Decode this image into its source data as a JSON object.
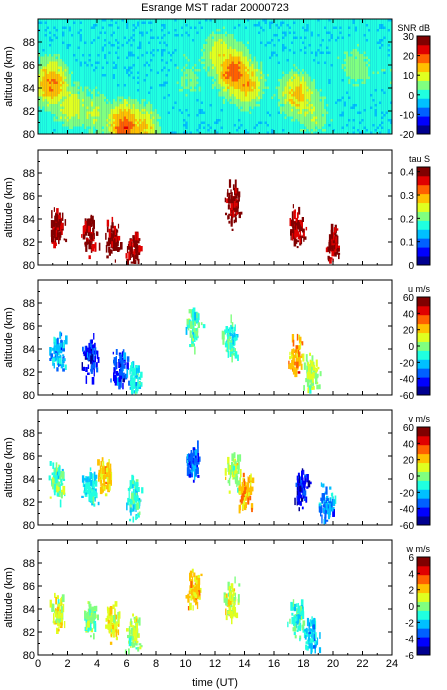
{
  "title": "Esrange MST radar 20000723",
  "colormap": [
    "#00008f",
    "#0000ff",
    "#0060ff",
    "#00c0ff",
    "#20ffe0",
    "#80ff80",
    "#e0ff20",
    "#ffc000",
    "#ff6000",
    "#e00000",
    "#800000"
  ],
  "chart_data": [
    {
      "type": "heatmap",
      "name": "snr",
      "ylabel": "altitude (km)",
      "xlim": [
        0,
        24
      ],
      "ylim": [
        80,
        90
      ],
      "yticks": [
        "80",
        "82",
        "84",
        "86",
        "88"
      ],
      "colorbar": {
        "label": "SNR dB",
        "range": [
          -20,
          30
        ],
        "ticks": [
          "-20",
          "-10",
          "0",
          "10",
          "20",
          "30"
        ]
      },
      "background": "#0030c0",
      "features": [
        {
          "t": 0.8,
          "z": 84.5,
          "value": 22
        },
        {
          "t": 2.2,
          "z": 82.5,
          "value": 15
        },
        {
          "t": 3.8,
          "z": 82.0,
          "value": 12
        },
        {
          "t": 5.8,
          "z": 80.8,
          "value": 25
        },
        {
          "t": 7.0,
          "z": 80.6,
          "value": 18
        },
        {
          "t": 10.2,
          "z": 85.0,
          "value": 8
        },
        {
          "t": 12.3,
          "z": 87.0,
          "value": 15
        },
        {
          "t": 13.2,
          "z": 85.5,
          "value": 25
        },
        {
          "t": 14.0,
          "z": 84.5,
          "value": 20
        },
        {
          "t": 17.5,
          "z": 83.5,
          "value": 18
        },
        {
          "t": 18.5,
          "z": 82.0,
          "value": 12
        },
        {
          "t": 21.5,
          "z": 86.0,
          "value": 10
        },
        {
          "t": 23.2,
          "z": 85.5,
          "value": 5
        }
      ]
    },
    {
      "type": "scatter",
      "name": "tau",
      "ylabel": "altitude (km)",
      "xlim": [
        0,
        24
      ],
      "ylim": [
        80,
        90
      ],
      "yticks": [
        "80",
        "82",
        "84",
        "86",
        "88"
      ],
      "colorbar": {
        "label": "tau S",
        "range": [
          0,
          0.42
        ],
        "ticks": [
          "0",
          "0.1",
          "0.2",
          "0.3",
          "0.4"
        ]
      },
      "value_range": [
        0.39,
        0.42
      ],
      "clusters": [
        {
          "t": 1.2,
          "z": 83.0
        },
        {
          "t": 3.5,
          "z": 82.5
        },
        {
          "t": 5.0,
          "z": 82.0
        },
        {
          "t": 6.5,
          "z": 81.0
        },
        {
          "t": 13.2,
          "z": 85.0
        },
        {
          "t": 17.5,
          "z": 83.0
        },
        {
          "t": 20.0,
          "z": 81.5
        }
      ]
    },
    {
      "type": "scatter",
      "name": "u",
      "ylabel": "altitude (km)",
      "xlim": [
        0,
        24
      ],
      "ylim": [
        80,
        90
      ],
      "yticks": [
        "80",
        "82",
        "84",
        "86",
        "88"
      ],
      "colorbar": {
        "label": "u m/s",
        "range": [
          -60,
          60
        ],
        "ticks": [
          "-60",
          "-40",
          "-20",
          "0",
          "20",
          "40",
          "60"
        ]
      },
      "clusters": [
        {
          "t": 1.3,
          "z": 83.5,
          "value": -25
        },
        {
          "t": 3.5,
          "z": 83.0,
          "value": -45
        },
        {
          "t": 5.5,
          "z": 82.0,
          "value": -40
        },
        {
          "t": 6.5,
          "z": 81.0,
          "value": -15
        },
        {
          "t": 10.5,
          "z": 85.5,
          "value": -5
        },
        {
          "t": 13.0,
          "z": 84.5,
          "value": -10
        },
        {
          "t": 17.5,
          "z": 83.0,
          "value": 25
        },
        {
          "t": 18.5,
          "z": 81.5,
          "value": 5
        }
      ]
    },
    {
      "type": "scatter",
      "name": "v",
      "ylabel": "altitude (km)",
      "xlim": [
        0,
        24
      ],
      "ylim": [
        80,
        90
      ],
      "yticks": [
        "80",
        "82",
        "84",
        "86",
        "88"
      ],
      "colorbar": {
        "label": "v m/s",
        "range": [
          -60,
          60
        ],
        "ticks": [
          "-60",
          "-40",
          "-20",
          "0",
          "20",
          "40",
          "60"
        ]
      },
      "clusters": [
        {
          "t": 1.3,
          "z": 83.5,
          "value": -5
        },
        {
          "t": 3.5,
          "z": 83.0,
          "value": -15
        },
        {
          "t": 4.5,
          "z": 84.0,
          "value": 20
        },
        {
          "t": 6.5,
          "z": 82.0,
          "value": -10
        },
        {
          "t": 10.5,
          "z": 85.0,
          "value": -35
        },
        {
          "t": 13.2,
          "z": 84.5,
          "value": 5
        },
        {
          "t": 14.0,
          "z": 82.5,
          "value": 25
        },
        {
          "t": 17.8,
          "z": 83.0,
          "value": -50
        },
        {
          "t": 19.5,
          "z": 81.5,
          "value": -30
        }
      ]
    },
    {
      "type": "scatter",
      "name": "w",
      "ylabel": "altitude (km)",
      "xlabel": "time (UT)",
      "xlim": [
        0,
        24
      ],
      "ylim": [
        80,
        90
      ],
      "xticks": [
        "0",
        "2",
        "4",
        "6",
        "8",
        "10",
        "12",
        "14",
        "16",
        "18",
        "20",
        "22",
        "24"
      ],
      "yticks": [
        "80",
        "82",
        "84",
        "86",
        "88"
      ],
      "colorbar": {
        "label": "w m/s",
        "range": [
          -6,
          6
        ],
        "ticks": [
          "-6",
          "-4",
          "-2",
          "0",
          "2",
          "4",
          "6"
        ]
      },
      "clusters": [
        {
          "t": 1.3,
          "z": 83.5,
          "value": 1
        },
        {
          "t": 3.5,
          "z": 83.0,
          "value": 0
        },
        {
          "t": 5.0,
          "z": 82.5,
          "value": 1.5
        },
        {
          "t": 6.5,
          "z": 81.5,
          "value": 0.5
        },
        {
          "t": 10.5,
          "z": 85.5,
          "value": 2
        },
        {
          "t": 13.0,
          "z": 84.5,
          "value": 1
        },
        {
          "t": 17.5,
          "z": 83.0,
          "value": -1
        },
        {
          "t": 18.5,
          "z": 81.5,
          "value": -2
        }
      ]
    }
  ]
}
